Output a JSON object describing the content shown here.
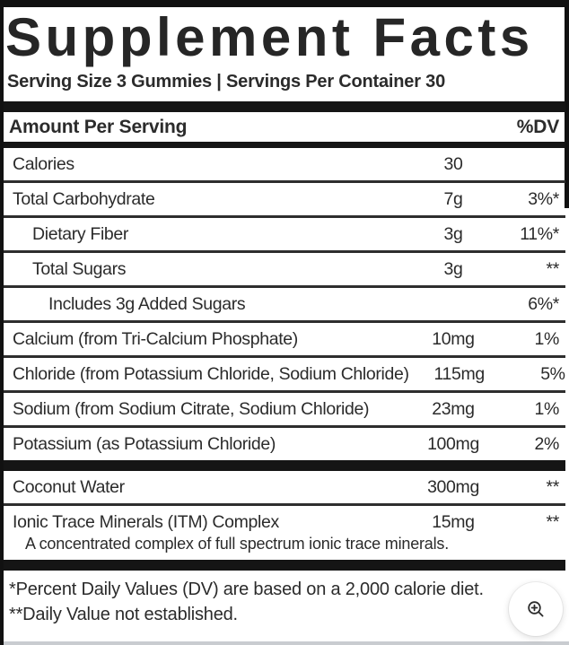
{
  "header": {
    "title": "Supplement Facts",
    "serving_line": "Serving Size 3 Gummies | Servings Per Container 30"
  },
  "table": {
    "header": {
      "amount_label": "Amount Per Serving",
      "dv_label": "%DV"
    },
    "rows": [
      {
        "name": "Calories",
        "amount": "30",
        "dv": "",
        "indent": 0,
        "sep_after": "thin"
      },
      {
        "name": "Total Carbohydrate",
        "amount": "7g",
        "dv": "3%*",
        "indent": 0,
        "sep_after": "thin"
      },
      {
        "name": "Dietary Fiber",
        "amount": "3g",
        "dv": "11%*",
        "indent": 1,
        "sep_after": "thin"
      },
      {
        "name": "Total Sugars",
        "amount": "3g",
        "dv": "**",
        "indent": 1,
        "sep_after": "thin"
      },
      {
        "name": "Includes 3g Added Sugars",
        "amount": "",
        "dv": "6%*",
        "indent": 2,
        "sep_after": "thin"
      },
      {
        "name": "Calcium (from Tri-Calcium Phosphate)",
        "amount": "10mg",
        "dv": "1%",
        "indent": 0,
        "sep_after": "thin"
      },
      {
        "name": "Chloride (from Potassium Chloride, Sodium Chloride)",
        "amount": "115mg",
        "dv": "5%",
        "indent": 0,
        "sep_after": "thin"
      },
      {
        "name": "Sodium (from Sodium Citrate, Sodium Chloride)",
        "amount": "23mg",
        "dv": "1%",
        "indent": 0,
        "sep_after": "thin"
      },
      {
        "name": "Potassium (as Potassium Chloride)",
        "amount": "100mg",
        "dv": "2%",
        "indent": 0,
        "sep_after": "thick"
      },
      {
        "name": "Coconut Water",
        "amount": "300mg",
        "dv": "**",
        "indent": 0,
        "sep_after": "thin"
      },
      {
        "name": "Ionic Trace Minerals (ITM) Complex",
        "amount": "15mg",
        "dv": "**",
        "indent": 0,
        "note": "A concentrated complex of full spectrum ionic trace minerals.",
        "sep_after": "thick"
      }
    ]
  },
  "footnotes": [
    "*Percent Daily Values (DV) are based on a 2,000 calorie diet.",
    "**Daily Value not established."
  ],
  "zoom_button": {
    "icon": "magnifier-plus-icon"
  },
  "colors": {
    "text": "#2b2b2b",
    "bar": "#151515",
    "divider": "#2e2e2e",
    "background": "#ffffff",
    "frame": "#111111",
    "bottom_strip": "#c9ccd0"
  }
}
